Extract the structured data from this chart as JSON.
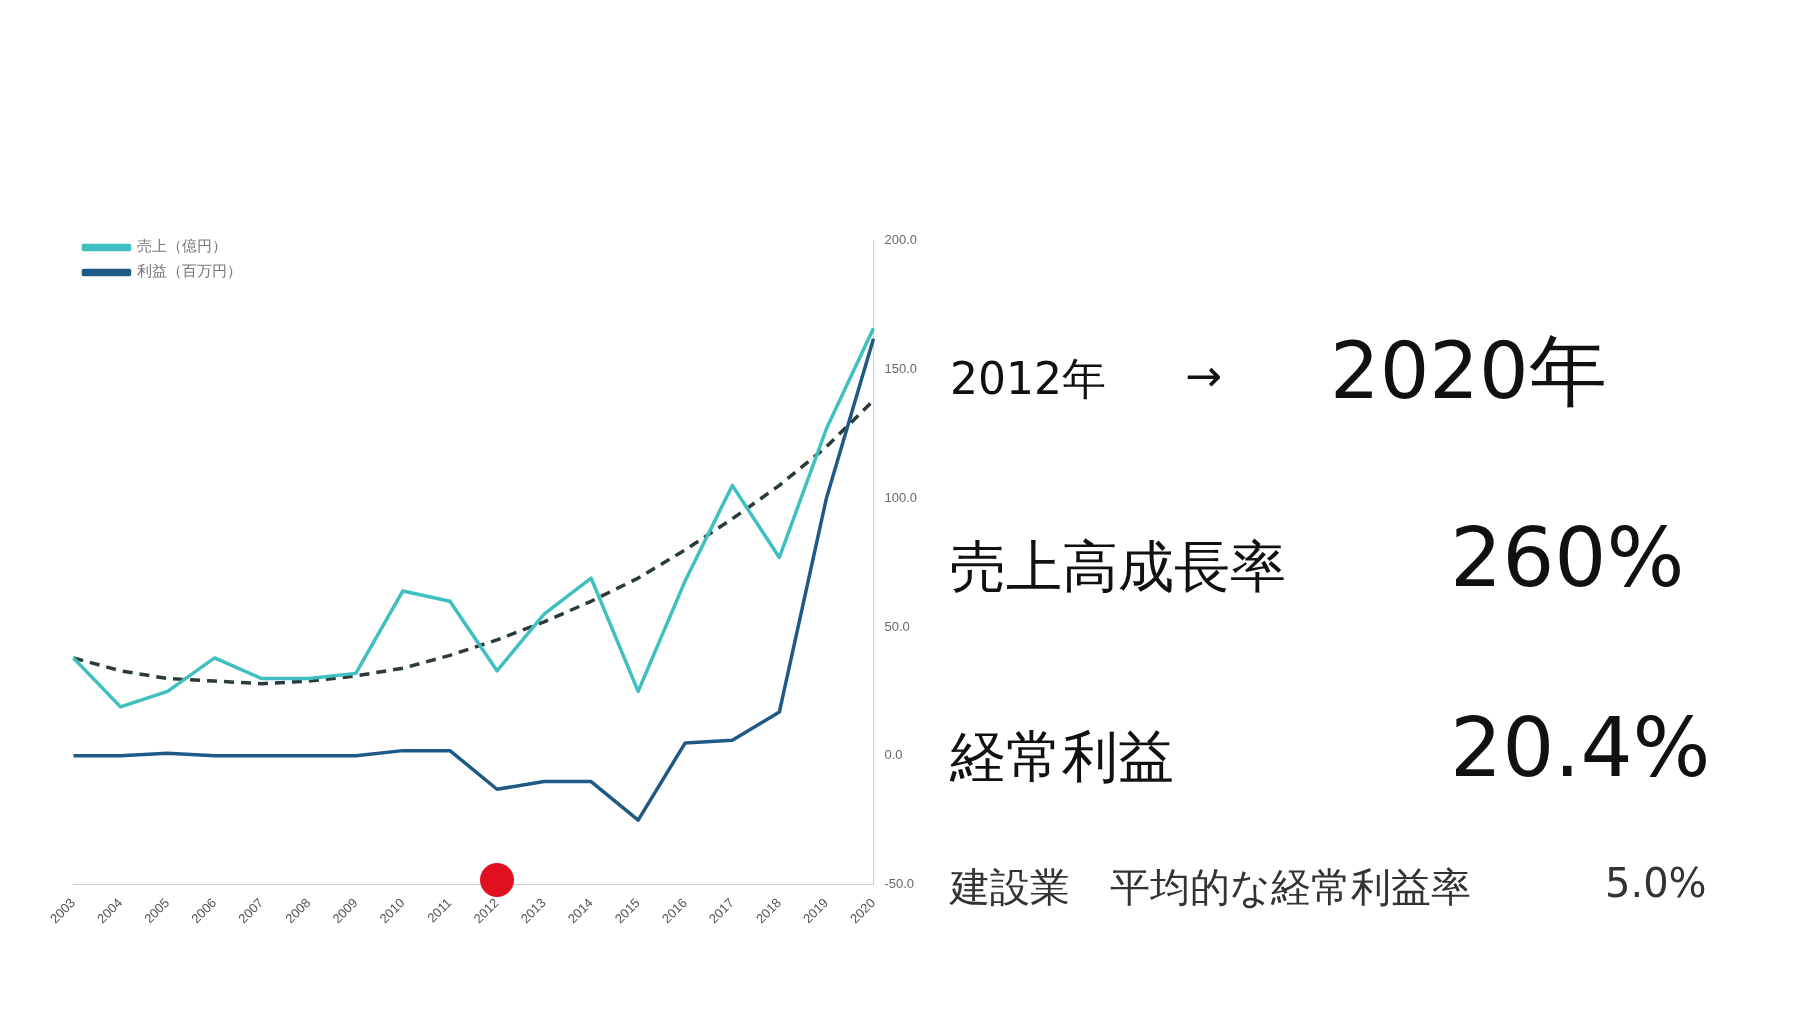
{
  "chart_data": {
    "type": "line",
    "categories": [
      "2003",
      "2004",
      "2005",
      "2006",
      "2007",
      "2008",
      "2009",
      "2010",
      "2011",
      "2012",
      "2013",
      "2014",
      "2015",
      "2016",
      "2017",
      "2018",
      "2019",
      "2020"
    ],
    "series": [
      {
        "name": "売上（億円）",
        "color": "#3fbfbf",
        "values": [
          38,
          19,
          25,
          38,
          30,
          30,
          32,
          64,
          60,
          33,
          55,
          69,
          25,
          68,
          105,
          77,
          127,
          166
        ]
      },
      {
        "name": "利益（百万円）",
        "color": "#1f5a87",
        "values": [
          0,
          0,
          1,
          0,
          0,
          0,
          0,
          2,
          2,
          -13,
          -10,
          -10,
          -25,
          5,
          6,
          17,
          100,
          162
        ]
      },
      {
        "type": "line",
        "line_style": "dashed",
        "color": "#2b3a3a",
        "values": [
          38,
          33,
          30,
          29,
          28,
          29,
          31,
          34,
          39,
          45,
          52,
          60,
          69,
          80,
          92,
          105,
          120,
          138
        ]
      }
    ],
    "ylim": [
      -50,
      200
    ],
    "yticks": [
      {
        "value": -50,
        "label": "-50.0"
      },
      {
        "value": 0,
        "label": "0.0"
      },
      {
        "value": 50,
        "label": "50.0"
      },
      {
        "value": 100,
        "label": "100.0"
      },
      {
        "value": 150,
        "label": "150.0"
      },
      {
        "value": 200,
        "label": "200.0"
      }
    ],
    "legend": "top left",
    "marker": "none",
    "line_style": "solid",
    "annotations": [
      "2012年",
      "→",
      "2020年",
      "売上高成長率",
      "260%",
      "経常利益",
      "20.4%",
      "建設業　平均的な経常利益率",
      "5.0%"
    ]
  }
}
